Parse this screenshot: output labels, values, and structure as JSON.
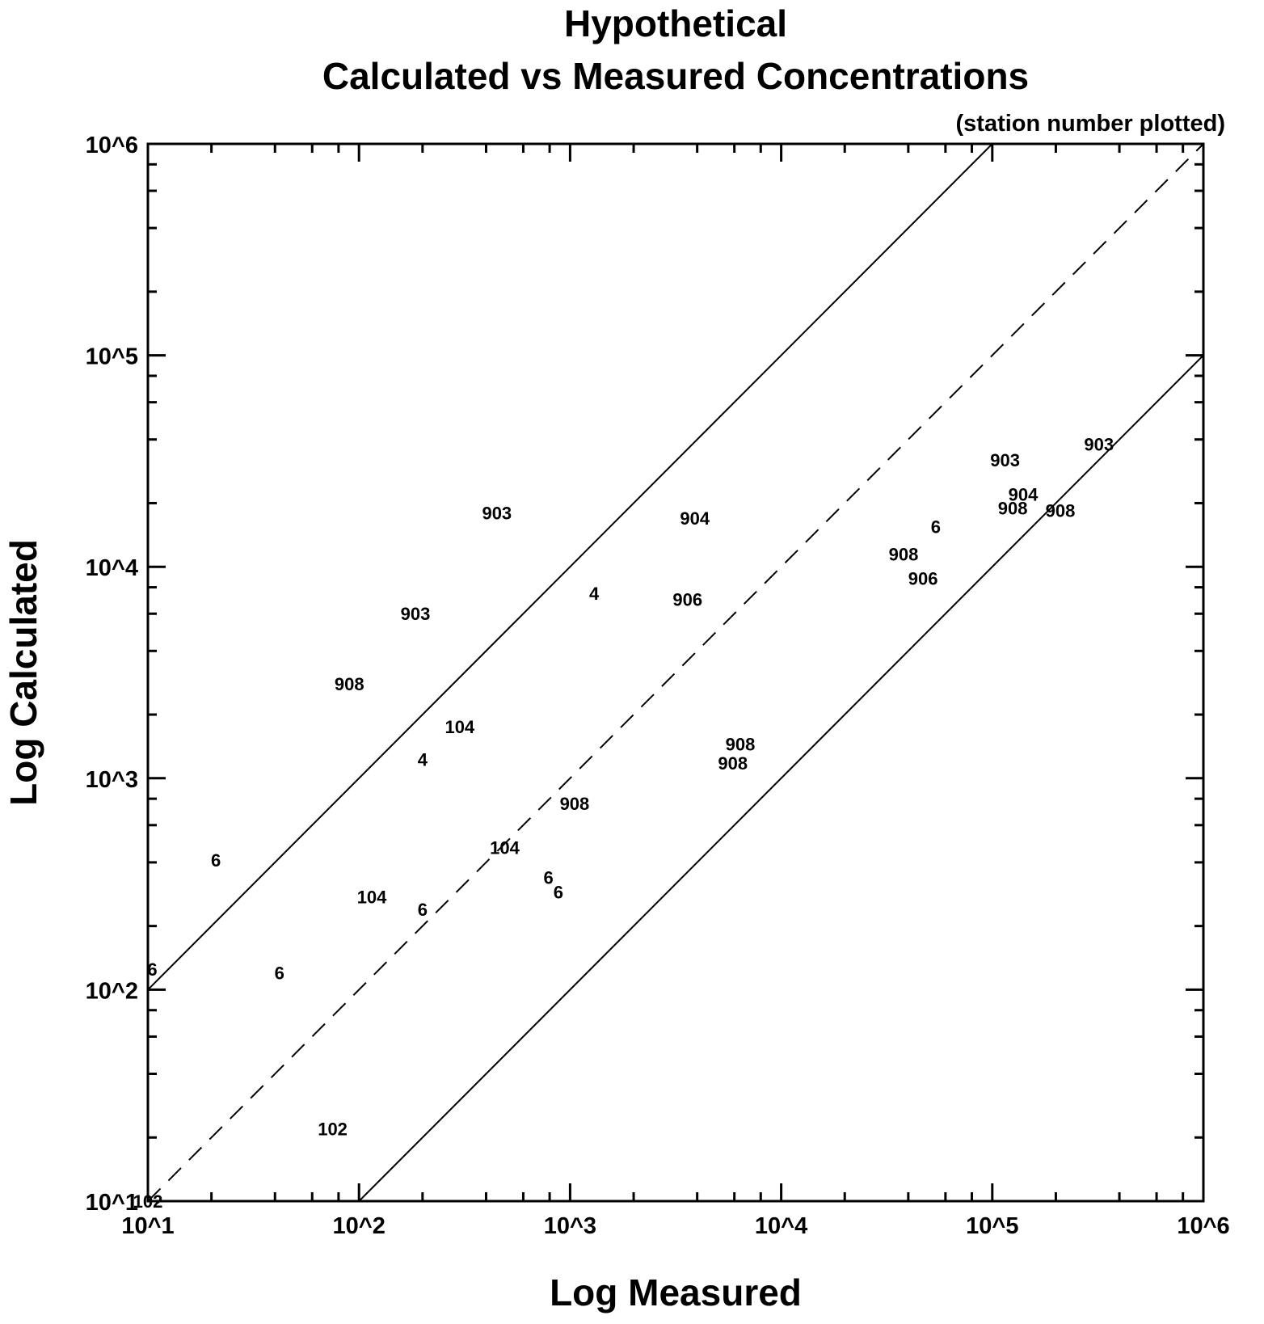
{
  "chart_data": {
    "type": "scatter",
    "title": "Hypothetical",
    "title_line2": "Calculated vs Measured Concentrations",
    "subtitle": "(station number plotted)",
    "xlabel": "Log Measured",
    "ylabel": "Log Calculated",
    "x_scale": "log",
    "y_scale": "log",
    "xlim": [
      10,
      1000000
    ],
    "ylim": [
      10,
      1000000
    ],
    "x_tick_values": [
      10,
      100,
      1000,
      10000,
      100000,
      1000000
    ],
    "x_tick_labels": [
      "10^1",
      "10^2",
      "10^3",
      "10^4",
      "10^5",
      "10^6"
    ],
    "y_tick_values": [
      10,
      100,
      1000,
      10000,
      100000,
      1000000
    ],
    "y_tick_labels": [
      "10^1",
      "10^2",
      "10^3",
      "10^4",
      "10^5",
      "10^6"
    ],
    "grid": false,
    "reference_lines": [
      {
        "style": "solid",
        "from": [
          10,
          100
        ],
        "to": [
          100000,
          1000000
        ]
      },
      {
        "style": "dashed",
        "from": [
          10,
          10
        ],
        "to": [
          1000000,
          1000000
        ]
      },
      {
        "style": "solid",
        "from": [
          100,
          10
        ],
        "to": [
          1000000,
          100000
        ]
      }
    ],
    "points": [
      {
        "label": "903",
        "x": 450,
        "y": 18000
      },
      {
        "label": "903",
        "x": 185,
        "y": 6000
      },
      {
        "label": "908",
        "x": 90,
        "y": 2800
      },
      {
        "label": "104",
        "x": 300,
        "y": 1750
      },
      {
        "label": "4",
        "x": 200,
        "y": 1230
      },
      {
        "label": "6",
        "x": 21,
        "y": 410
      },
      {
        "label": "6",
        "x": 10.5,
        "y": 125
      },
      {
        "label": "6",
        "x": 42,
        "y": 120
      },
      {
        "label": "102",
        "x": 75,
        "y": 22
      },
      {
        "label": "102",
        "x": 10,
        "y": 10
      },
      {
        "label": "104",
        "x": 115,
        "y": 275
      },
      {
        "label": "6",
        "x": 200,
        "y": 240
      },
      {
        "label": "104",
        "x": 490,
        "y": 470
      },
      {
        "label": "6",
        "x": 790,
        "y": 340
      },
      {
        "label": "6",
        "x": 880,
        "y": 290
      },
      {
        "label": "908",
        "x": 1050,
        "y": 760
      },
      {
        "label": "4",
        "x": 1300,
        "y": 7500
      },
      {
        "label": "904",
        "x": 3900,
        "y": 17000
      },
      {
        "label": "906",
        "x": 3600,
        "y": 7000
      },
      {
        "label": "908",
        "x": 6400,
        "y": 1450
      },
      {
        "label": "908",
        "x": 5900,
        "y": 1180
      },
      {
        "label": "908",
        "x": 38000,
        "y": 11500
      },
      {
        "label": "906",
        "x": 47000,
        "y": 8800
      },
      {
        "label": "6",
        "x": 54000,
        "y": 15500
      },
      {
        "label": "903",
        "x": 115000,
        "y": 32000
      },
      {
        "label": "904",
        "x": 140000,
        "y": 22000
      },
      {
        "label": "908",
        "x": 125000,
        "y": 19000
      },
      {
        "label": "908",
        "x": 210000,
        "y": 18500
      },
      {
        "label": "903",
        "x": 320000,
        "y": 38000
      }
    ]
  }
}
